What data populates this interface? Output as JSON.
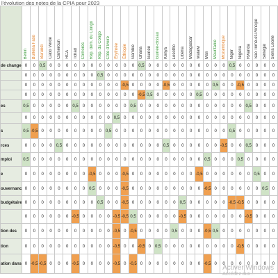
{
  "title": "l'évolution des notes de la CPIA pour 2023",
  "table": {
    "columns": [
      {
        "name": "Bénin",
        "color": "#3a9a3a"
      },
      {
        "name": "Burkina Faso",
        "color": "#e07b20"
      },
      {
        "name": "Burundi",
        "color": "#e07b20"
      },
      {
        "name": "Cabo Verde",
        "color": "#333333"
      },
      {
        "name": "Cameroun",
        "color": "#333333"
      },
      {
        "name": "RCA",
        "color": "#333333"
      },
      {
        "name": "Tchad",
        "color": "#333333"
      },
      {
        "name": "Comores",
        "color": "#3a9a3a"
      },
      {
        "name": "Rép. dém. du Congo",
        "color": "#3a9a3a"
      },
      {
        "name": "Rép. du Congo",
        "color": "#3a9a3a"
      },
      {
        "name": "Côte d'Ivoire",
        "color": "#3a9a3a"
      },
      {
        "name": "Érythrée",
        "color": "#e07b20"
      },
      {
        "name": "Éthiopie",
        "color": "#e07b20"
      },
      {
        "name": "Gambie",
        "color": "#333333"
      },
      {
        "name": "Ghana",
        "color": "#333333"
      },
      {
        "name": "Guinée",
        "color": "#333333"
      },
      {
        "name": "Guinée-Bissau",
        "color": "#3a9a3a"
      },
      {
        "name": "Kenya",
        "color": "#333333"
      },
      {
        "name": "Lesotho",
        "color": "#333333"
      },
      {
        "name": "Libéria",
        "color": "#333333"
      },
      {
        "name": "Madagascar",
        "color": "#333333"
      },
      {
        "name": "Malawi",
        "color": "#333333"
      },
      {
        "name": "Mali",
        "color": "#333333"
      },
      {
        "name": "Mauritanie",
        "color": "#3a9a3a"
      },
      {
        "name": "Mozambique",
        "color": "#e07b20"
      },
      {
        "name": "Niger",
        "color": "#333333"
      },
      {
        "name": "Nigeria",
        "color": "#333333"
      },
      {
        "name": "Rwanda",
        "color": "#333333"
      },
      {
        "name": "São Tomé-et-Principe",
        "color": "#333333"
      },
      {
        "name": "Sénégal",
        "color": "#333333"
      },
      {
        "name": "Sierra Leone",
        "color": "#333333"
      }
    ],
    "rows": [
      {
        "label": "de change",
        "cells": [
          "0",
          "0",
          "0,5",
          "0",
          "0",
          "0",
          "0",
          "0",
          "0",
          "0",
          "0",
          "0",
          "0",
          "0",
          "0,5",
          "0",
          "0",
          "0",
          "0",
          "0",
          "0",
          "0",
          "0",
          "0",
          "0",
          "0,5",
          "0",
          "0",
          "0",
          "0",
          "0"
        ]
      },
      {
        "cells": [
          "0",
          "0",
          "0",
          "0",
          "0",
          "0",
          "0",
          "0",
          "0",
          "0,5",
          "0",
          "0",
          "0",
          "0",
          "0",
          "0",
          "0",
          "0",
          "0",
          "0",
          "0",
          "0",
          "0",
          "0",
          "0",
          "0",
          "0",
          "0",
          "0",
          "0",
          "0"
        ]
      },
      {
        "cells": [
          "0",
          "0",
          "0",
          "0",
          "0",
          "0",
          "0",
          "0",
          "0",
          "0",
          "0",
          "0",
          "-0,5",
          "0",
          "0",
          "0",
          "0",
          "-0,5",
          "0",
          "0",
          "0",
          "0",
          "0",
          "0,5",
          "0",
          "0",
          "-0,5",
          "0",
          "0",
          "0",
          "0"
        ]
      },
      {
        "cells": [
          "0",
          "0",
          "0",
          "0",
          "0",
          "0",
          "0",
          "0",
          "0",
          "0",
          "0",
          "0",
          "0",
          "0",
          "-0,5",
          "0,5",
          "0",
          "0",
          "0",
          "0",
          "0",
          "0,5",
          "0",
          "0",
          "0",
          "0",
          "0",
          "0",
          "0",
          "0",
          "0"
        ]
      },
      {
        "label": "es",
        "cells": [
          "0,5",
          "0",
          "0",
          "0",
          "0",
          "0",
          "0,5",
          "0",
          "0",
          "0",
          "0",
          "0",
          "0",
          "0,5",
          "0",
          "0",
          "0",
          "0",
          "0",
          "0",
          "0",
          "0",
          "0",
          "0",
          "0",
          "0",
          "0",
          "0,5",
          "0",
          "0",
          "0"
        ]
      },
      {
        "cells": [
          "0",
          "0",
          "0",
          "0",
          "0",
          "0",
          "0",
          "0",
          "0",
          "0",
          "0",
          "0,5",
          "0",
          "0",
          "0",
          "0",
          "0",
          "0",
          "0",
          "0",
          "0",
          "0",
          "0",
          "0",
          "0",
          "0",
          "0",
          "0",
          "0",
          "0",
          "0"
        ]
      },
      {
        "label": "s",
        "cells": [
          "0,5",
          "-0,5",
          "0",
          "0",
          "0",
          "0",
          "0",
          "0",
          "0",
          "0",
          "0,5",
          "0",
          "0",
          "0",
          "0",
          "0",
          "0",
          "0",
          "0",
          "0",
          "0",
          "0",
          "0",
          "0",
          "0",
          "0,5",
          "0",
          "0",
          "0",
          "0",
          "0"
        ]
      },
      {
        "label": "rces",
        "cells": [
          "0",
          "0",
          "0",
          "0",
          "0,5",
          "0",
          "0",
          "0",
          "0",
          "0",
          "0",
          "0",
          "0",
          "0",
          "0",
          "0",
          "0",
          "0,5",
          "0",
          "0",
          "0",
          "0",
          "0",
          "0",
          "-0,5",
          "0",
          "0",
          "0,5",
          "0",
          "0",
          "0"
        ]
      },
      {
        "label": "mploi",
        "cells": [
          "0,5",
          "0",
          "0",
          "0",
          "0",
          "0",
          "0",
          "0",
          "0",
          "0",
          "0",
          "0",
          "0",
          "0",
          "0",
          "0",
          "0",
          "0",
          "0",
          "0",
          "0",
          "0",
          "0,5",
          "0",
          "0",
          "0",
          "0,5",
          "0",
          "0",
          "0",
          "0"
        ]
      },
      {
        "label": "e",
        "cells": [
          "0",
          "0",
          "0",
          "0",
          "0",
          "0",
          "0",
          "0",
          "-0,5",
          "0",
          "0",
          "0",
          "-0,5",
          "0",
          "0",
          "0",
          "0",
          "0",
          "0",
          "0",
          "0",
          "-0,5",
          "0",
          "0",
          "0",
          "0",
          "0",
          "0",
          "0,5",
          "0",
          "0"
        ]
      },
      {
        "label": "ouvernance",
        "cells": [
          "0",
          "0",
          "0",
          "0",
          "0",
          "0",
          "0",
          "0",
          "0,5",
          "0",
          "0",
          "0",
          "-0,5",
          "0",
          "0",
          "0",
          "0",
          "0",
          "0",
          "0",
          "0",
          "0",
          "-0,5",
          "0",
          "0",
          "0",
          "0",
          "0",
          "0",
          "0,5",
          "0"
        ]
      },
      {
        "label": "budgétaire",
        "cells": [
          "0",
          "0",
          "0",
          "0",
          "0",
          "0",
          "0",
          "0",
          "0",
          "0,5",
          "0",
          "0",
          "-0,5",
          "0",
          "0",
          "0",
          "0",
          "0",
          "0",
          "0,5",
          "0",
          "0",
          "0",
          "0",
          "0",
          "-0,5",
          "-0,5",
          "0",
          "0",
          "0",
          "0"
        ]
      },
      {
        "cells": [
          "0",
          "0",
          "0",
          "0",
          "0",
          "0",
          "-0,5",
          "0",
          "0",
          "0",
          "0",
          "-0,5",
          "-0,5",
          "0,5",
          "0",
          "0",
          "0",
          "0",
          "0",
          "-0,5",
          "0",
          "0",
          "0",
          "0",
          "0",
          "0",
          "0",
          "-0,5",
          "0",
          "0",
          "0"
        ]
      },
      {
        "label": "tion des",
        "cells": [
          "0",
          "0",
          "0",
          "0",
          "0",
          "0",
          "0",
          "0",
          "0",
          "0",
          "0",
          "-0,5",
          "0",
          "-0,5",
          "0",
          "0",
          "0",
          "0",
          "0,5",
          "0",
          "0",
          "0",
          "-0,5",
          "0,5",
          "0",
          "0",
          "0",
          "0",
          "0",
          "0",
          "0"
        ]
      },
      {
        "label": "tion",
        "cells": [
          "0",
          "0",
          "0",
          "0",
          "0",
          "0",
          "0",
          "0",
          "0",
          "0",
          "0",
          "-0,5",
          "0",
          "0",
          "-0,5",
          "0",
          "0,5",
          "0",
          "0",
          "0",
          "0",
          "0",
          "0",
          "0",
          "0",
          "0",
          "-0,5",
          "0",
          "0",
          "0",
          "0"
        ]
      },
      {
        "label": "ation dans",
        "cells": [
          "0",
          "-0,5",
          "-0,5",
          "0",
          "0",
          "0",
          "-0,5",
          "0",
          "0",
          "0",
          "0",
          "-0,5",
          "0",
          "-0,5",
          "0",
          "0",
          "0",
          "0",
          "0",
          "0",
          "0",
          "0",
          "-0,5",
          "0",
          "0",
          "0",
          "0",
          "0",
          "0",
          "0",
          "0"
        ]
      }
    ]
  },
  "watermark": {
    "line1": "Activer Windows",
    "line2": "Accédez aux..."
  }
}
